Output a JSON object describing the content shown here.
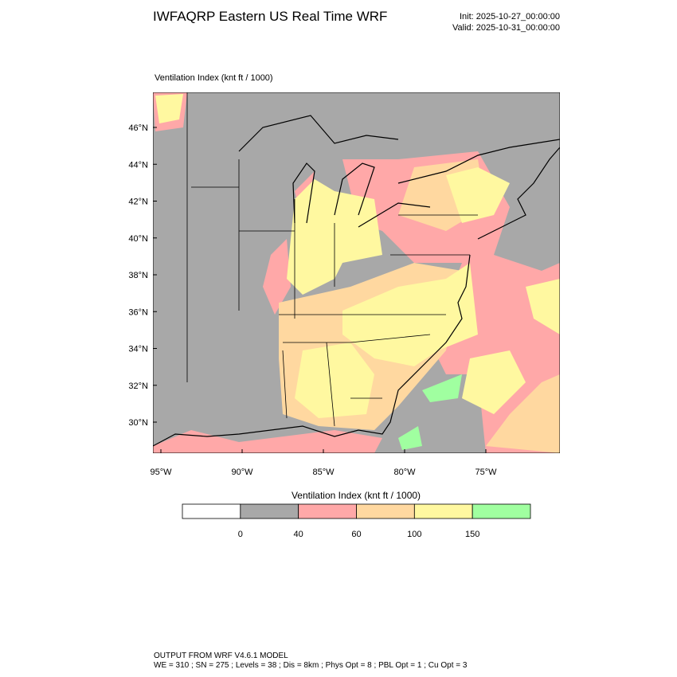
{
  "header": {
    "title": "IWFAQRP Eastern US Real Time WRF",
    "init": "Init: 2025-10-27_00:00:00",
    "valid": "Valid: 2025-10-31_00:00:00"
  },
  "map": {
    "subtitle": "Ventilation Index   (knt ft / 1000)",
    "lat_labels": [
      "46°N",
      "44°N",
      "42°N",
      "40°N",
      "38°N",
      "36°N",
      "34°N",
      "32°N",
      "30°N"
    ],
    "lon_labels": [
      "95°W",
      "90°W",
      "85°W",
      "80°W",
      "75°W"
    ]
  },
  "colorbar": {
    "title": "Ventilation Index  (knt ft / 1000)",
    "labels": [
      "0",
      "40",
      "60",
      "100",
      "150"
    ],
    "colors": [
      "#ffffff",
      "#a8a8a8",
      "#ffa8a8",
      "#ffd8a0",
      "#fff8a0",
      "#a0ffa0"
    ]
  },
  "footer": {
    "line1": "OUTPUT FROM WRF V4.6.1 MODEL",
    "line2": "WE = 310 ; SN = 275 ; Levels = 38 ; Dis = 8km ; Phys Opt = 8 ; PBL Opt = 1 ; Cu Opt = 3"
  }
}
